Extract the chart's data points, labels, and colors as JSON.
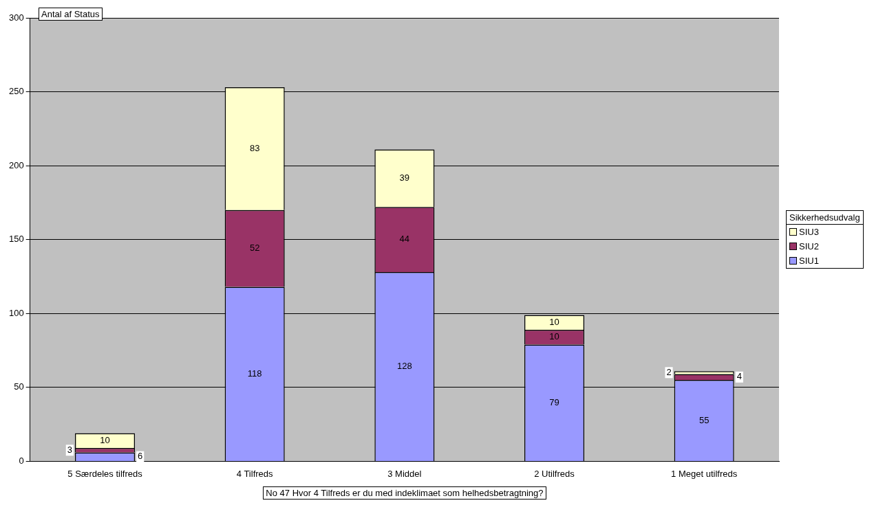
{
  "chart_data": {
    "type": "bar",
    "title": "Antal af Status",
    "xlabel": "No 47 Hvor 4 Tilfreds er du med indeklimaet som helhedsbetragtning?",
    "legend_title": "Sikkerhedsudvalg",
    "categories": [
      "5 Særdeles tilfreds",
      "4 Tilfreds",
      "3 Middel",
      "2 Utilfreds",
      "1 Meget utilfreds"
    ],
    "series": [
      {
        "name": "SIU1",
        "color": "#9999ff",
        "values": [
          6,
          118,
          128,
          79,
          55
        ]
      },
      {
        "name": "SIU2",
        "color": "#993366",
        "values": [
          3,
          52,
          44,
          10,
          4
        ]
      },
      {
        "name": "SIU3",
        "color": "#ffffcc",
        "values": [
          10,
          83,
          39,
          10,
          2
        ]
      }
    ],
    "stacked": true,
    "ylim": [
      0,
      300
    ],
    "yticks": [
      0,
      50,
      100,
      150,
      200,
      250,
      300
    ],
    "grid": "y",
    "legend": "right",
    "data_labels": true
  }
}
